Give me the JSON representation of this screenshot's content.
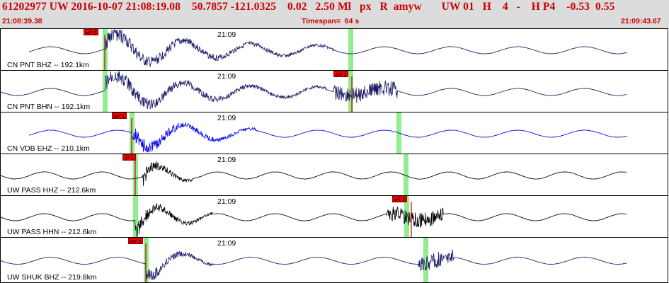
{
  "header": {
    "title": "61202977 UW 2016-10-07 21:08:19.08    50.7857 -121.0325    0.02   2.50 Ml   px   R  amyw       UW 01   H    4   -    H P4    -0.53  0.55",
    "start_time": "21:08:39.38",
    "timespan": "Timespan=  64 s",
    "end_time": "21:09:43.67"
  },
  "panels": [
    {
      "label": "CN PNT BHZ -- 192.1km",
      "time_mark": "21:09",
      "color": "#1a1a66",
      "picks": [
        {
          "tag": "eP 2"
        }
      ]
    },
    {
      "label": "CN PNT BHN -- 192.1km",
      "time_mark": "21:09",
      "color": "#1a1a66",
      "picks": [
        {
          "tag": "eS 2"
        }
      ]
    },
    {
      "label": "CN VDB EHZ -- 210.1km",
      "time_mark": "21:09",
      "color": "#0000ee",
      "picks": [
        {
          "tag": "eP 1"
        }
      ]
    },
    {
      "label": "UW PASS HHZ -- 212.6km",
      "time_mark": "21:09",
      "color": "#000000",
      "picks": [
        {
          "tag": "iP 1"
        }
      ]
    },
    {
      "label": "UW PASS HHN -- 212.6km",
      "time_mark": "21:09",
      "color": "#000000",
      "picks": [
        {
          "tag": "eS 2"
        }
      ]
    },
    {
      "label": "UW SHUK BHZ -- 219.8km",
      "time_mark": "21:09",
      "color": "#1a1a66",
      "picks": [
        {
          "tag": "eP 2"
        }
      ]
    }
  ],
  "colors": {
    "header_bg": "#dcdcdc",
    "header_text": "#cc0000",
    "pick_tag": "#ee0000",
    "green_marker": "#90ee90",
    "pick_line": "#cc0000"
  }
}
